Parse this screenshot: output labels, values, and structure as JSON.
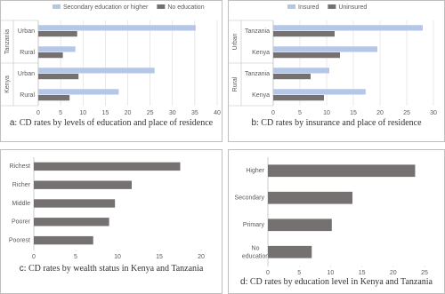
{
  "chart_data": [
    {
      "type": "bar",
      "orientation": "horizontal",
      "groups": [
        "Tanzania",
        "Kenya"
      ],
      "categories": [
        "Urban",
        "Rural",
        "Urban",
        "Rural"
      ],
      "series": [
        {
          "name": "Secondary education or higher",
          "color": "#b4c7e7",
          "values": [
            35.2,
            8.3,
            26,
            18
          ]
        },
        {
          "name": "No education",
          "color": "#767171",
          "values": [
            8.7,
            5.5,
            9,
            7
          ]
        }
      ],
      "xlim": [
        0,
        40
      ],
      "xticks": [
        0,
        5,
        10,
        15,
        20,
        25,
        30,
        35,
        40
      ],
      "grid": true,
      "legend": "top",
      "caption_label": "a",
      "caption": ": CD rates by levels of education and place of residence"
    },
    {
      "type": "bar",
      "orientation": "horizontal",
      "groups": [
        "Urban",
        "Rural"
      ],
      "categories": [
        "Tanzania",
        "Kenya",
        "Tanzania",
        "Kenya"
      ],
      "series": [
        {
          "name": "Insured",
          "color": "#b4c7e7",
          "values": [
            28,
            19.5,
            10.5,
            17.3
          ]
        },
        {
          "name": "Uninsured",
          "color": "#767171",
          "values": [
            11.5,
            12.5,
            7,
            9.5
          ]
        }
      ],
      "xlim": [
        0,
        30
      ],
      "xticks": [
        0,
        5,
        10,
        15,
        20,
        25,
        30
      ],
      "grid": true,
      "legend": "top",
      "caption_label": "b",
      "caption": ": CD rates by insurance and place of residence"
    },
    {
      "type": "bar",
      "orientation": "horizontal",
      "categories": [
        "Richest",
        "Richer",
        "Middle",
        "Poorer",
        "Poorest"
      ],
      "values": [
        17.5,
        11.7,
        9.7,
        9,
        7.1
      ],
      "color": "#767171",
      "xlim": [
        0,
        20
      ],
      "xticks": [
        0,
        5,
        10,
        15,
        20
      ],
      "grid": false,
      "caption_label": "c",
      "caption": ": CD rates by wealth status in Kenya and Tanzania"
    },
    {
      "type": "bar",
      "orientation": "horizontal",
      "categories": [
        "Higher",
        "Secondary",
        "Primary",
        "No education"
      ],
      "values": [
        23.5,
        13.5,
        10.2,
        7
      ],
      "color": "#767171",
      "xlim": [
        0,
        25
      ],
      "xticks": [
        0,
        5,
        10,
        15,
        20,
        25
      ],
      "grid": false,
      "caption_label": "d",
      "caption": ": CD rates by education level in Kenya and Tanzania"
    }
  ]
}
